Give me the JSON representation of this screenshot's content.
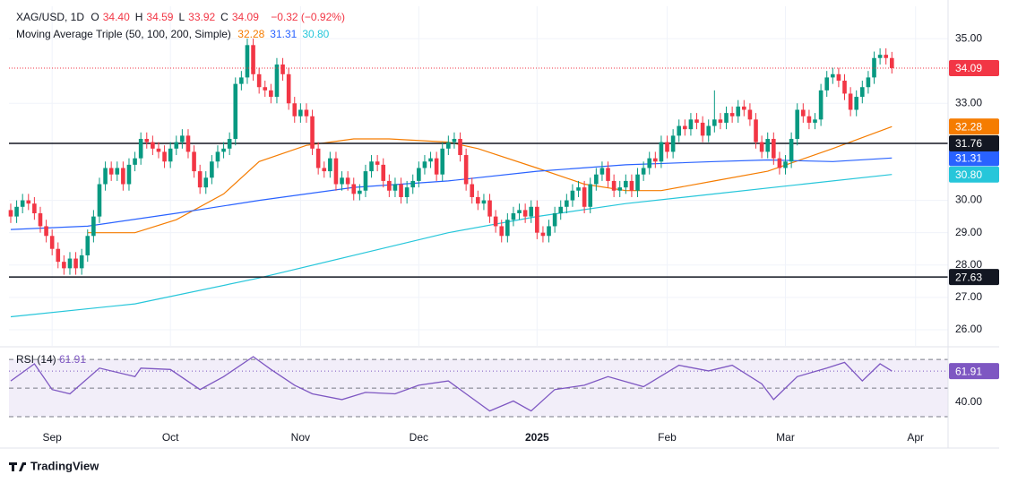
{
  "header": {
    "symbol": "XAG/USD, 1D",
    "ohlc": [
      {
        "key": "O",
        "value": "34.40"
      },
      {
        "key": "H",
        "value": "34.59"
      },
      {
        "key": "L",
        "value": "33.92"
      },
      {
        "key": "C",
        "value": "34.09"
      }
    ],
    "change": "−0.32 (−0.92%)"
  },
  "chart_data": [
    {
      "type": "candlestick",
      "up_color": "#089981",
      "down_color": "#f23645",
      "candles": [
        [
          29.7,
          29.9,
          29.3,
          29.5
        ],
        [
          29.5,
          30.0,
          29.3,
          29.8
        ],
        [
          29.8,
          30.2,
          29.6,
          30.0
        ],
        [
          30.0,
          30.2,
          29.7,
          29.9
        ],
        [
          29.9,
          30.1,
          29.4,
          29.6
        ],
        [
          29.6,
          29.8,
          29.0,
          29.2
        ],
        [
          29.2,
          29.4,
          28.7,
          28.9
        ],
        [
          28.9,
          29.1,
          28.3,
          28.5
        ],
        [
          28.5,
          28.7,
          27.9,
          28.1
        ],
        [
          28.1,
          28.3,
          27.7,
          27.9
        ],
        [
          27.9,
          28.4,
          27.7,
          28.2
        ],
        [
          28.2,
          28.4,
          27.7,
          27.9
        ],
        [
          27.9,
          28.5,
          27.7,
          28.3
        ],
        [
          28.3,
          29.1,
          28.1,
          28.9
        ],
        [
          28.9,
          29.7,
          28.7,
          29.5
        ],
        [
          29.5,
          30.7,
          29.3,
          30.5
        ],
        [
          30.5,
          31.2,
          30.3,
          31.0
        ],
        [
          31.0,
          31.2,
          30.6,
          30.8
        ],
        [
          30.8,
          31.2,
          30.6,
          31.0
        ],
        [
          31.0,
          31.2,
          30.3,
          30.5
        ],
        [
          30.5,
          31.3,
          30.3,
          31.1
        ],
        [
          31.1,
          31.5,
          30.9,
          31.3
        ],
        [
          31.3,
          32.1,
          31.1,
          31.9
        ],
        [
          31.9,
          32.1,
          31.6,
          31.8
        ],
        [
          31.8,
          32.0,
          31.4,
          31.6
        ],
        [
          31.6,
          31.8,
          31.3,
          31.5
        ],
        [
          31.5,
          31.7,
          31.0,
          31.2
        ],
        [
          31.2,
          31.8,
          31.0,
          31.6
        ],
        [
          31.6,
          32.0,
          31.4,
          31.8
        ],
        [
          31.8,
          32.2,
          31.6,
          32.0
        ],
        [
          32.0,
          32.2,
          31.3,
          31.5
        ],
        [
          31.5,
          31.7,
          30.7,
          30.9
        ],
        [
          30.9,
          31.1,
          30.2,
          30.4
        ],
        [
          30.4,
          30.9,
          30.2,
          30.7
        ],
        [
          30.7,
          31.4,
          30.5,
          31.2
        ],
        [
          31.2,
          31.7,
          31.0,
          31.5
        ],
        [
          31.5,
          31.8,
          31.3,
          31.6
        ],
        [
          31.6,
          32.1,
          31.4,
          31.9
        ],
        [
          31.9,
          33.8,
          31.7,
          33.6
        ],
        [
          33.6,
          34.0,
          33.4,
          33.8
        ],
        [
          33.8,
          35.0,
          33.6,
          34.8
        ],
        [
          34.8,
          35.0,
          33.7,
          33.9
        ],
        [
          33.9,
          34.1,
          33.3,
          33.5
        ],
        [
          33.5,
          33.7,
          33.2,
          33.4
        ],
        [
          33.4,
          33.6,
          33.0,
          33.2
        ],
        [
          33.2,
          34.4,
          33.0,
          34.2
        ],
        [
          34.2,
          34.4,
          33.7,
          33.9
        ],
        [
          33.9,
          34.1,
          32.8,
          33.0
        ],
        [
          33.0,
          33.2,
          32.4,
          32.6
        ],
        [
          32.6,
          33.0,
          32.4,
          32.8
        ],
        [
          32.8,
          33.0,
          32.4,
          32.6
        ],
        [
          32.6,
          32.8,
          31.4,
          31.6
        ],
        [
          31.6,
          31.8,
          30.8,
          31.0
        ],
        [
          31.0,
          31.2,
          30.7,
          30.9
        ],
        [
          30.9,
          31.5,
          30.7,
          31.3
        ],
        [
          31.3,
          31.5,
          30.3,
          30.5
        ],
        [
          30.5,
          30.9,
          30.3,
          30.7
        ],
        [
          30.7,
          30.9,
          30.3,
          30.5
        ],
        [
          30.5,
          30.7,
          30.0,
          30.2
        ],
        [
          30.2,
          30.5,
          30.0,
          30.3
        ],
        [
          30.3,
          31.1,
          30.1,
          30.9
        ],
        [
          30.9,
          31.4,
          30.7,
          31.2
        ],
        [
          31.2,
          31.4,
          30.9,
          31.1
        ],
        [
          31.1,
          31.3,
          30.4,
          30.6
        ],
        [
          30.6,
          30.8,
          30.1,
          30.3
        ],
        [
          30.3,
          30.7,
          30.1,
          30.5
        ],
        [
          30.5,
          30.7,
          29.9,
          30.1
        ],
        [
          30.1,
          30.6,
          29.9,
          30.4
        ],
        [
          30.4,
          30.8,
          30.2,
          30.6
        ],
        [
          30.6,
          31.2,
          30.4,
          31.0
        ],
        [
          31.0,
          31.4,
          30.8,
          31.2
        ],
        [
          31.2,
          31.5,
          31.0,
          31.3
        ],
        [
          31.3,
          31.5,
          30.6,
          30.8
        ],
        [
          30.8,
          31.8,
          30.6,
          31.6
        ],
        [
          31.6,
          32.0,
          31.4,
          31.8
        ],
        [
          31.8,
          32.1,
          31.6,
          31.9
        ],
        [
          31.9,
          32.1,
          31.2,
          31.4
        ],
        [
          31.4,
          31.6,
          30.3,
          30.5
        ],
        [
          30.5,
          30.7,
          29.9,
          30.1
        ],
        [
          30.1,
          30.3,
          29.7,
          29.9
        ],
        [
          29.9,
          30.2,
          29.7,
          30.0
        ],
        [
          30.0,
          30.2,
          29.3,
          29.5
        ],
        [
          29.5,
          29.7,
          29.0,
          29.2
        ],
        [
          29.2,
          29.4,
          28.7,
          28.9
        ],
        [
          28.9,
          29.6,
          28.7,
          29.4
        ],
        [
          29.4,
          29.8,
          29.2,
          29.6
        ],
        [
          29.6,
          29.9,
          29.4,
          29.7
        ],
        [
          29.7,
          29.9,
          29.3,
          29.5
        ],
        [
          29.5,
          30.0,
          29.3,
          29.8
        ],
        [
          29.8,
          30.0,
          28.8,
          29.0
        ],
        [
          29.0,
          29.2,
          28.7,
          28.9
        ],
        [
          28.9,
          29.4,
          28.7,
          29.2
        ],
        [
          29.2,
          29.8,
          29.0,
          29.6
        ],
        [
          29.6,
          30.0,
          29.4,
          29.8
        ],
        [
          29.8,
          30.2,
          29.6,
          30.0
        ],
        [
          30.0,
          30.5,
          29.8,
          30.3
        ],
        [
          30.3,
          30.6,
          30.1,
          30.4
        ],
        [
          30.4,
          30.6,
          29.6,
          29.8
        ],
        [
          29.8,
          30.7,
          29.6,
          30.5
        ],
        [
          30.5,
          31.0,
          30.3,
          30.8
        ],
        [
          30.8,
          31.2,
          30.6,
          31.0
        ],
        [
          31.0,
          31.2,
          30.4,
          30.6
        ],
        [
          30.6,
          30.8,
          30.1,
          30.3
        ],
        [
          30.3,
          30.6,
          30.1,
          30.4
        ],
        [
          30.4,
          30.8,
          30.2,
          30.6
        ],
        [
          30.6,
          30.8,
          30.1,
          30.3
        ],
        [
          30.3,
          31.0,
          30.1,
          30.8
        ],
        [
          30.8,
          31.2,
          30.6,
          31.0
        ],
        [
          31.0,
          31.5,
          30.8,
          31.3
        ],
        [
          31.3,
          31.5,
          31.0,
          31.2
        ],
        [
          31.2,
          32.0,
          31.0,
          31.8
        ],
        [
          31.8,
          32.0,
          31.3,
          31.5
        ],
        [
          31.5,
          32.2,
          31.3,
          32.0
        ],
        [
          32.0,
          32.5,
          31.8,
          32.3
        ],
        [
          32.3,
          32.5,
          32.0,
          32.2
        ],
        [
          32.2,
          32.7,
          32.0,
          32.5
        ],
        [
          32.5,
          32.7,
          32.2,
          32.4
        ],
        [
          32.4,
          32.6,
          31.8,
          32.0
        ],
        [
          32.0,
          32.5,
          31.8,
          32.3
        ],
        [
          32.3,
          33.4,
          32.1,
          32.5
        ],
        [
          32.5,
          32.7,
          32.2,
          32.4
        ],
        [
          32.4,
          32.9,
          32.2,
          32.7
        ],
        [
          32.7,
          32.9,
          32.4,
          32.6
        ],
        [
          32.6,
          33.1,
          32.4,
          32.9
        ],
        [
          32.9,
          33.1,
          32.6,
          32.8
        ],
        [
          32.8,
          33.0,
          32.3,
          32.5
        ],
        [
          32.5,
          32.7,
          31.6,
          31.8
        ],
        [
          31.8,
          32.0,
          31.3,
          31.5
        ],
        [
          31.5,
          32.1,
          31.3,
          31.9
        ],
        [
          31.9,
          32.1,
          31.1,
          31.3
        ],
        [
          31.3,
          31.5,
          30.8,
          31.0
        ],
        [
          31.0,
          31.4,
          30.8,
          31.2
        ],
        [
          31.2,
          32.1,
          31.0,
          31.9
        ],
        [
          31.9,
          33.0,
          31.7,
          32.8
        ],
        [
          32.8,
          33.0,
          32.4,
          32.6
        ],
        [
          32.6,
          32.8,
          32.2,
          32.4
        ],
        [
          32.4,
          32.7,
          32.2,
          32.5
        ],
        [
          32.5,
          33.6,
          32.3,
          33.4
        ],
        [
          33.4,
          34.0,
          33.2,
          33.8
        ],
        [
          33.8,
          34.1,
          33.6,
          33.9
        ],
        [
          33.9,
          34.1,
          33.5,
          33.7
        ],
        [
          33.7,
          33.9,
          33.1,
          33.3
        ],
        [
          33.3,
          33.5,
          32.6,
          32.8
        ],
        [
          32.8,
          33.4,
          32.6,
          33.2
        ],
        [
          33.2,
          33.7,
          33.0,
          33.5
        ],
        [
          33.5,
          34.0,
          33.3,
          33.8
        ],
        [
          33.8,
          34.6,
          33.6,
          34.4
        ],
        [
          34.4,
          34.7,
          34.2,
          34.5
        ],
        [
          34.5,
          34.7,
          34.2,
          34.4
        ],
        [
          34.4,
          34.59,
          33.92,
          34.09
        ]
      ],
      "last_label": "34.09",
      "xlim": [
        -0.3,
        158.5
      ],
      "ylim": [
        25.5,
        36
      ],
      "yticks": [
        {
          "value": 35,
          "label": "35.00"
        },
        {
          "value": 33,
          "label": "33.00"
        },
        {
          "value": 30,
          "label": "30.00"
        },
        {
          "value": 29,
          "label": "29.00"
        },
        {
          "value": 28,
          "label": "28.00"
        },
        {
          "value": 27,
          "label": "27.00"
        },
        {
          "value": 26,
          "label": "26.00"
        }
      ],
      "grid": true,
      "indicator": "Moving Average Triple (50, 100, 200, Simple)",
      "series": [
        {
          "color": "#f57c00",
          "x": [
            13,
            21,
            28,
            36,
            42,
            50,
            58,
            64,
            74,
            79,
            89,
            97,
            104,
            110,
            119,
            128,
            139,
            149
          ],
          "values": [
            29.0,
            29.0,
            29.4,
            30.2,
            31.2,
            31.7,
            31.9,
            31.9,
            31.8,
            31.6,
            31.0,
            30.5,
            30.3,
            30.3,
            30.6,
            30.9,
            31.6,
            32.28
          ],
          "last_label": "32.28"
        },
        {
          "color": "#2962ff",
          "x": [
            0,
            13,
            28,
            42,
            58,
            74,
            89,
            104,
            119,
            128,
            139,
            149
          ],
          "values": [
            29.1,
            29.2,
            29.6,
            30.0,
            30.4,
            30.6,
            30.9,
            31.1,
            31.2,
            31.25,
            31.2,
            31.31
          ],
          "last_label": "31.31"
        },
        {
          "color": "#26c6da",
          "x": [
            0,
            21,
            42,
            58,
            74,
            89,
            104,
            119,
            134,
            149
          ],
          "values": [
            26.4,
            26.8,
            27.6,
            28.3,
            29.0,
            29.5,
            29.9,
            30.2,
            30.5,
            30.8
          ],
          "last_label": "30.80"
        }
      ],
      "levels": [
        {
          "value": 31.76,
          "label": "31.76"
        },
        {
          "value": 27.63,
          "label": "27.63"
        }
      ]
    },
    {
      "type": "line",
      "title": "RSI (14)",
      "color": "#7e57c2",
      "x": [
        0,
        4,
        7,
        10,
        15,
        21,
        22,
        27,
        32,
        36,
        41,
        44,
        48,
        51,
        56,
        60,
        65,
        69,
        74,
        77,
        81,
        85,
        88,
        92,
        97,
        101,
        107,
        113,
        118,
        122,
        127,
        129,
        133,
        138,
        141,
        144,
        147,
        149
      ],
      "values": [
        55,
        67,
        49,
        46,
        64,
        58,
        64,
        63,
        49,
        58,
        72,
        63,
        52,
        46,
        42,
        47,
        46,
        52,
        55,
        46,
        34,
        41,
        34,
        49,
        52,
        58,
        51,
        66,
        62,
        66,
        53,
        42,
        58,
        64,
        68,
        55,
        67,
        61.91
      ],
      "last_label": "61.91",
      "bands": [
        30,
        50,
        70
      ],
      "xlim": [
        -0.3,
        158.5
      ],
      "ylim": [
        22.5,
        77
      ],
      "yticks": [
        {
          "value": 40,
          "label": "40.00"
        }
      ],
      "xticks": [
        {
          "value": 7,
          "label": "Sep"
        },
        {
          "value": 27,
          "label": "Oct"
        },
        {
          "value": 49,
          "label": "Nov"
        },
        {
          "value": 69,
          "label": "Dec"
        },
        {
          "value": 89,
          "label": "2025"
        },
        {
          "value": 111,
          "label": "Feb"
        },
        {
          "value": 131,
          "label": "Mar"
        },
        {
          "value": 153,
          "label": "Apr"
        }
      ]
    }
  ],
  "footer": {
    "brand": "TradingView"
  }
}
